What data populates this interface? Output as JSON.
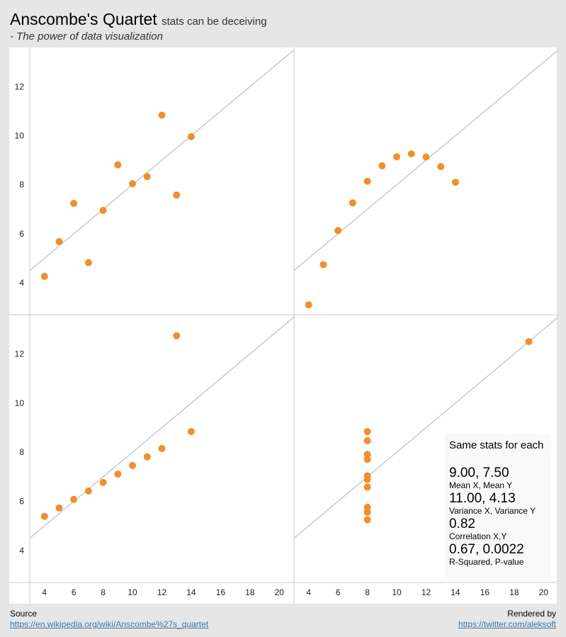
{
  "header": {
    "title": "Anscombe's Quartet",
    "title_suffix": "stats can be deceiving",
    "subtitle": "- The power of data visualization"
  },
  "footer": {
    "source_label": "Source",
    "source_link": "https://en.wikipedia.org/wiki/Anscombe%27s_quartet",
    "rendered_label": "Rendered by",
    "rendered_link": "https://twitter.com/aleksoft"
  },
  "stats": {
    "title": "Same stats for each",
    "items": [
      {
        "value": "9.00, 7.50",
        "label": "Mean X, Mean Y"
      },
      {
        "value": "11.00, 4.13",
        "label": "Variance X, Variance Y"
      },
      {
        "value": "0.82",
        "label": "Correlation X,Y"
      },
      {
        "value": "0.67, 0.0022",
        "label": "R-Squared, P-value"
      }
    ]
  },
  "colors": {
    "point": "#f28e2b",
    "regression": "#aab4be",
    "grid": "#c8c8c8",
    "panel_bg": "#ffffff",
    "page_bg": "#e6e6e6"
  },
  "chart_data": {
    "type": "scatter",
    "layout": "2x2 grid",
    "xlim": [
      3,
      21
    ],
    "ylim": [
      2.7,
      13.6
    ],
    "x_ticks": [
      4,
      6,
      8,
      10,
      12,
      14,
      16,
      18,
      20
    ],
    "y_ticks": [
      4,
      6,
      8,
      10,
      12
    ],
    "regression": {
      "intercept": 3.0,
      "slope": 0.5
    },
    "panels": [
      {
        "id": "I",
        "points": [
          [
            10,
            8.04
          ],
          [
            8,
            6.95
          ],
          [
            13,
            7.58
          ],
          [
            9,
            8.81
          ],
          [
            11,
            8.33
          ],
          [
            14,
            9.96
          ],
          [
            6,
            7.24
          ],
          [
            4,
            4.26
          ],
          [
            12,
            10.84
          ],
          [
            7,
            4.82
          ],
          [
            5,
            5.68
          ]
        ]
      },
      {
        "id": "II",
        "points": [
          [
            10,
            9.14
          ],
          [
            8,
            8.14
          ],
          [
            13,
            8.74
          ],
          [
            9,
            8.77
          ],
          [
            11,
            9.26
          ],
          [
            14,
            8.1
          ],
          [
            6,
            6.13
          ],
          [
            4,
            3.1
          ],
          [
            12,
            9.13
          ],
          [
            7,
            7.26
          ],
          [
            5,
            4.74
          ]
        ]
      },
      {
        "id": "III",
        "points": [
          [
            10,
            7.46
          ],
          [
            8,
            6.77
          ],
          [
            13,
            12.74
          ],
          [
            9,
            7.11
          ],
          [
            11,
            7.81
          ],
          [
            14,
            8.84
          ],
          [
            6,
            6.08
          ],
          [
            4,
            5.39
          ],
          [
            12,
            8.15
          ],
          [
            7,
            6.42
          ],
          [
            5,
            5.73
          ]
        ]
      },
      {
        "id": "IV",
        "points": [
          [
            8,
            6.58
          ],
          [
            8,
            5.76
          ],
          [
            8,
            7.71
          ],
          [
            8,
            8.84
          ],
          [
            8,
            8.47
          ],
          [
            8,
            7.04
          ],
          [
            8,
            5.25
          ],
          [
            19,
            12.5
          ],
          [
            8,
            5.56
          ],
          [
            8,
            7.91
          ],
          [
            8,
            6.89
          ]
        ]
      }
    ]
  }
}
